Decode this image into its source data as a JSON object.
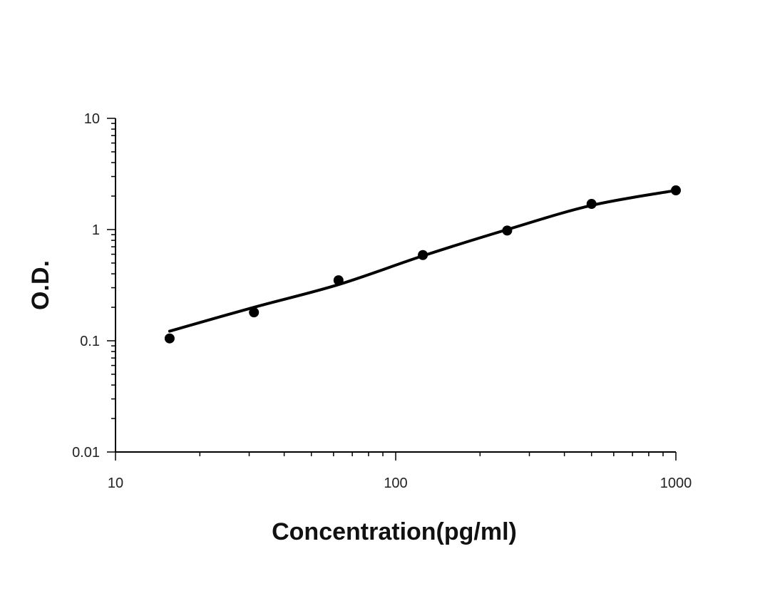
{
  "chart_data": {
    "type": "scatter",
    "title": "",
    "xlabel": "Concentration(pg/ml)",
    "ylabel": "O.D.",
    "x_scale": "log",
    "y_scale": "log",
    "xlim": [
      10,
      1000
    ],
    "ylim": [
      0.01,
      10
    ],
    "x_tick_labels": [
      "10",
      "100",
      "1000"
    ],
    "y_tick_labels": [
      "0.01",
      "0.1",
      "1",
      "10"
    ],
    "grid": false,
    "legend": "none",
    "colors": {
      "points": "#000000",
      "curve": "#000000",
      "axes": "#000000"
    },
    "series": [
      {
        "type": "scatter",
        "x": [
          15.6,
          31.2,
          62.5,
          125,
          250,
          500,
          1000
        ],
        "y": [
          0.105,
          0.18,
          0.35,
          0.59,
          0.98,
          1.7,
          2.25
        ]
      },
      {
        "type": "line",
        "x": [
          15.6,
          31.2,
          62.5,
          125,
          250,
          500,
          1000
        ],
        "y": [
          0.122,
          0.2,
          0.32,
          0.58,
          1.0,
          1.65,
          2.25
        ]
      }
    ]
  }
}
